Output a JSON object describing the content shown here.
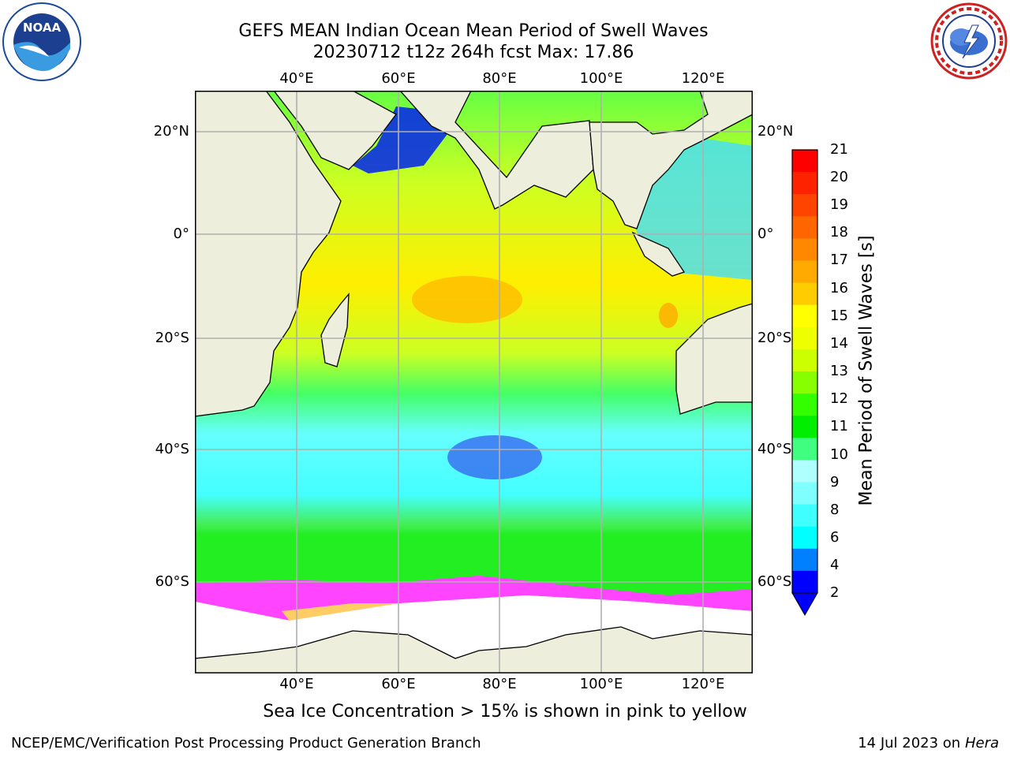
{
  "title": {
    "line1": "GEFS MEAN Indian Ocean Mean Period of Swell Waves",
    "line2": "20230712 t12z 264h fcst   Max: 17.86"
  },
  "logos": {
    "left": "NOAA",
    "left_ring": "NATIONAL OCEANIC AND ATMOSPHERIC ADMINISTRATION · U.S. DEPARTMENT OF COMMERCE",
    "right_ring": "NATIONAL WEATHER SERVICE"
  },
  "map": {
    "lon_ticks": [
      "40°E",
      "60°E",
      "80°E",
      "100°E",
      "120°E"
    ],
    "lat_ticks_left": [
      "20°N",
      "0°",
      "20°S",
      "40°S",
      "60°S"
    ],
    "lat_ticks_right": [
      "20°N",
      "0°",
      "20°S",
      "40°S",
      "60°S"
    ],
    "colors": {
      "land": "#eeeedd",
      "ice_free": "#ffffff",
      "grid": "#b0b0b0",
      "sea_ice": [
        "#ff44ff",
        "#ff88cc",
        "#ffcc66",
        "#ffff66"
      ]
    }
  },
  "colorbar": {
    "label": "Mean Period of Swell Waves [s]",
    "tick_labels": [
      "21",
      "20",
      "19",
      "18",
      "17",
      "16",
      "15",
      "14",
      "13",
      "12",
      "11",
      "10",
      "9",
      "8",
      "6",
      "4",
      "2"
    ],
    "colors": [
      "#0000ff",
      "#0080ff",
      "#00ffff",
      "#40ffff",
      "#80ffff",
      "#b0ffff",
      "#40ff80",
      "#00ee00",
      "#33ff00",
      "#88ff00",
      "#ccff00",
      "#eeff00",
      "#ffff00",
      "#ffcc00",
      "#ffaa00",
      "#ff8800",
      "#ff6600",
      "#ff4400",
      "#ff2200",
      "#ff0000"
    ]
  },
  "caption": "Sea Ice Concentration > 15% is shown in pink to yellow",
  "footer": {
    "left": "NCEP/EMC/Verification Post Processing Product Generation Branch",
    "right_date": "14 Jul 2023 on",
    "right_machine": "Hera"
  }
}
